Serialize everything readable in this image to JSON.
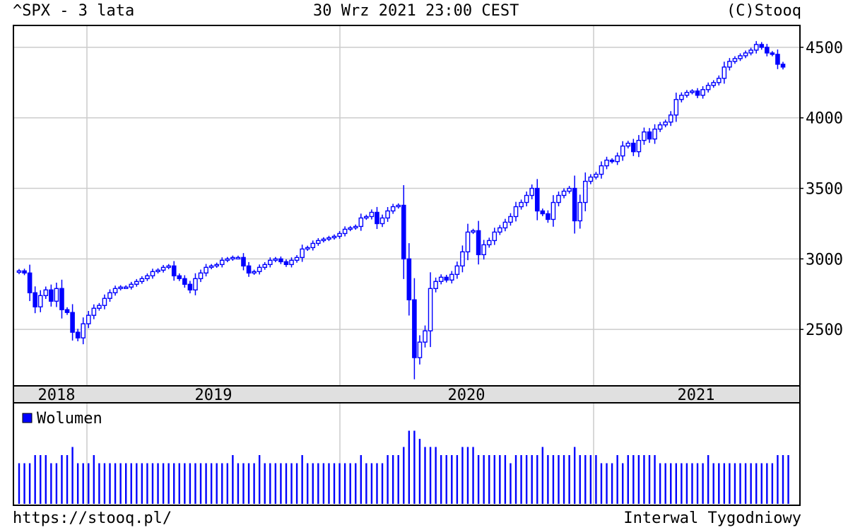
{
  "header": {
    "symbol_title": "^SPX - 3 lata",
    "datetime": "30 Wrz 2021 23:00 CEST",
    "copyright": "(C)Stooq"
  },
  "footer": {
    "url": "https://stooq.pl/",
    "interval": "Interwal Tygodniowy"
  },
  "colors": {
    "candle": "#0000ff",
    "grid": "#cccccc",
    "timeline_band": "#e0e0e0"
  },
  "chart_data": [
    {
      "type": "candlestick",
      "title": "^SPX - 3 lata",
      "x_labels": [
        "2018",
        "2019",
        "2020",
        "2021"
      ],
      "y_ticks": [
        2500,
        3000,
        3500,
        4000,
        4500
      ],
      "ylim": [
        2100,
        4650
      ],
      "grid": true,
      "series": [
        {
          "name": "",
          "values": [
            2915,
            2900,
            2760,
            2660,
            2740,
            2780,
            2700,
            2790,
            2640,
            2620,
            2480,
            2440,
            2540,
            2600,
            2650,
            2670,
            2720,
            2760,
            2790,
            2800,
            2800,
            2820,
            2840,
            2860,
            2880,
            2910,
            2920,
            2940,
            2950,
            2880,
            2860,
            2820,
            2780,
            2860,
            2900,
            2940,
            2950,
            2960,
            2990,
            3000,
            3010,
            3010,
            2950,
            2900,
            2910,
            2940,
            2960,
            2990,
            3000,
            2980,
            2960,
            2990,
            3010,
            3070,
            3080,
            3110,
            3130,
            3140,
            3150,
            3160,
            3180,
            3210,
            3220,
            3230,
            3290,
            3300,
            3330,
            3250,
            3290,
            3340,
            3370,
            3380,
            3000,
            2710,
            2300,
            2410,
            2490,
            2790,
            2840,
            2870,
            2850,
            2890,
            2950,
            3050,
            3190,
            3200,
            3030,
            3100,
            3130,
            3190,
            3220,
            3260,
            3300,
            3370,
            3400,
            3450,
            3500,
            3340,
            3320,
            3280,
            3400,
            3450,
            3480,
            3500,
            3270,
            3400,
            3550,
            3580,
            3600,
            3660,
            3700,
            3690,
            3730,
            3800,
            3820,
            3760,
            3840,
            3900,
            3850,
            3920,
            3950,
            3970,
            4020,
            4130,
            4160,
            4180,
            4190,
            4160,
            4200,
            4230,
            4250,
            4280,
            4360,
            4400,
            4420,
            4440,
            4460,
            4480,
            4520,
            4500,
            4460,
            4450,
            4380,
            4360
          ]
        }
      ],
      "volume_legend": "Wolumen",
      "volume": [
        5,
        5,
        5,
        6,
        6,
        6,
        5,
        5,
        6,
        6,
        7,
        5,
        5,
        5,
        6,
        5,
        5,
        5,
        5,
        5,
        5,
        5,
        5,
        5,
        5,
        5,
        5,
        5,
        5,
        5,
        5,
        5,
        5,
        5,
        5,
        5,
        5,
        5,
        5,
        5,
        6,
        5,
        5,
        5,
        5,
        6,
        5,
        5,
        5,
        5,
        5,
        5,
        5,
        6,
        5,
        5,
        5,
        5,
        5,
        5,
        5,
        5,
        5,
        5,
        6,
        5,
        5,
        5,
        5,
        6,
        6,
        6,
        7,
        9,
        9,
        8,
        7,
        7,
        7,
        6,
        6,
        6,
        6,
        7,
        7,
        7,
        6,
        6,
        6,
        6,
        6,
        6,
        5,
        6,
        6,
        6,
        6,
        6,
        7,
        6,
        6,
        6,
        6,
        6,
        7,
        6,
        6,
        6,
        6,
        5,
        5,
        5,
        6,
        5,
        6,
        6,
        6,
        6,
        6,
        6,
        5,
        5,
        5,
        5,
        5,
        5,
        5,
        5,
        5,
        6,
        5,
        5,
        5,
        5,
        5,
        5,
        5,
        5,
        5,
        5,
        5,
        5,
        6,
        6,
        6
      ]
    }
  ]
}
